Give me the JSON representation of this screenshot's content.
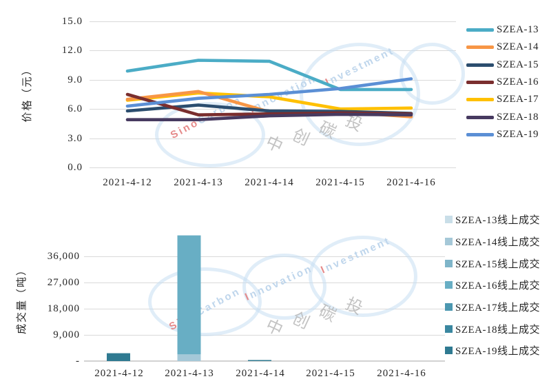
{
  "watermark": {
    "sino": "Sino",
    "carbon": "Carbon",
    "innovation_initial": "I",
    "innovation_rest": "nnovation",
    "investment_initial": "I",
    "investment_rest": "nvestment",
    "amp": "&",
    "cn_chars": [
      "中",
      "创",
      "碳",
      "投"
    ]
  },
  "chart_data": [
    {
      "type": "line",
      "title": "",
      "xlabel": "",
      "ylabel": "价格（元）",
      "categories": [
        "2021-4-12",
        "2021-4-13",
        "2021-4-14",
        "2021-4-15",
        "2021-4-16"
      ],
      "yticks": [
        "15.0",
        "12.0",
        "9.0",
        "6.0",
        "3.0",
        "0.0"
      ],
      "ylim": [
        0,
        15
      ],
      "grid": true,
      "legend_position": "right",
      "series": [
        {
          "name": "SZEA-13",
          "color": "#4BACC6",
          "values": [
            9.9,
            11.0,
            10.9,
            8.0,
            8.0
          ]
        },
        {
          "name": "SZEA-14",
          "color": "#F79646",
          "values": [
            7.0,
            7.8,
            5.7,
            5.7,
            5.2
          ]
        },
        {
          "name": "SZEA-15",
          "color": "#2B4D6E",
          "values": [
            5.8,
            6.4,
            5.8,
            5.75,
            5.55
          ]
        },
        {
          "name": "SZEA-16",
          "color": "#7A2E2E",
          "values": [
            7.5,
            5.4,
            5.5,
            5.6,
            5.5
          ]
        },
        {
          "name": "SZEA-17",
          "color": "#FFC000",
          "values": [
            6.9,
            7.65,
            7.25,
            6.0,
            6.1
          ]
        },
        {
          "name": "SZEA-18",
          "color": "#473A60",
          "values": [
            4.9,
            4.9,
            5.3,
            5.45,
            5.4
          ]
        },
        {
          "name": "SZEA-19",
          "color": "#5B8FD5",
          "values": [
            6.3,
            7.1,
            7.5,
            8.1,
            9.1
          ]
        }
      ]
    },
    {
      "type": "bar",
      "stacked": true,
      "title": "",
      "xlabel": "",
      "ylabel": "成交量（吨）",
      "categories": [
        "2021-4-12",
        "2021-4-13",
        "2021-4-14",
        "2021-4-15",
        "2021-4-16"
      ],
      "yticks": [
        "36,000",
        "27,000",
        "18,000",
        "9,000",
        "-"
      ],
      "ylim": [
        0,
        45000
      ],
      "grid": true,
      "legend_position": "right",
      "series": [
        {
          "name": "SZEA-13线上成交",
          "color": "#C9DEE8",
          "values": [
            0,
            0,
            0,
            0,
            0
          ]
        },
        {
          "name": "SZEA-14线上成交",
          "color": "#A5C8D8",
          "values": [
            0,
            2300,
            0,
            0,
            0
          ]
        },
        {
          "name": "SZEA-15线上成交",
          "color": "#7FB5C9",
          "values": [
            0,
            0,
            0,
            0,
            0
          ]
        },
        {
          "name": "SZEA-16线上成交",
          "color": "#68AEC4",
          "values": [
            0,
            40900,
            0,
            0,
            0
          ]
        },
        {
          "name": "SZEA-17线上成交",
          "color": "#4C97B0",
          "values": [
            0,
            0,
            0,
            0,
            0
          ]
        },
        {
          "name": "SZEA-18线上成交",
          "color": "#3A87A0",
          "values": [
            0,
            0,
            0,
            0,
            0
          ]
        },
        {
          "name": "SZEA-19线上成交",
          "color": "#2F7A91",
          "values": [
            2700,
            0,
            300,
            0,
            0
          ]
        }
      ]
    }
  ]
}
